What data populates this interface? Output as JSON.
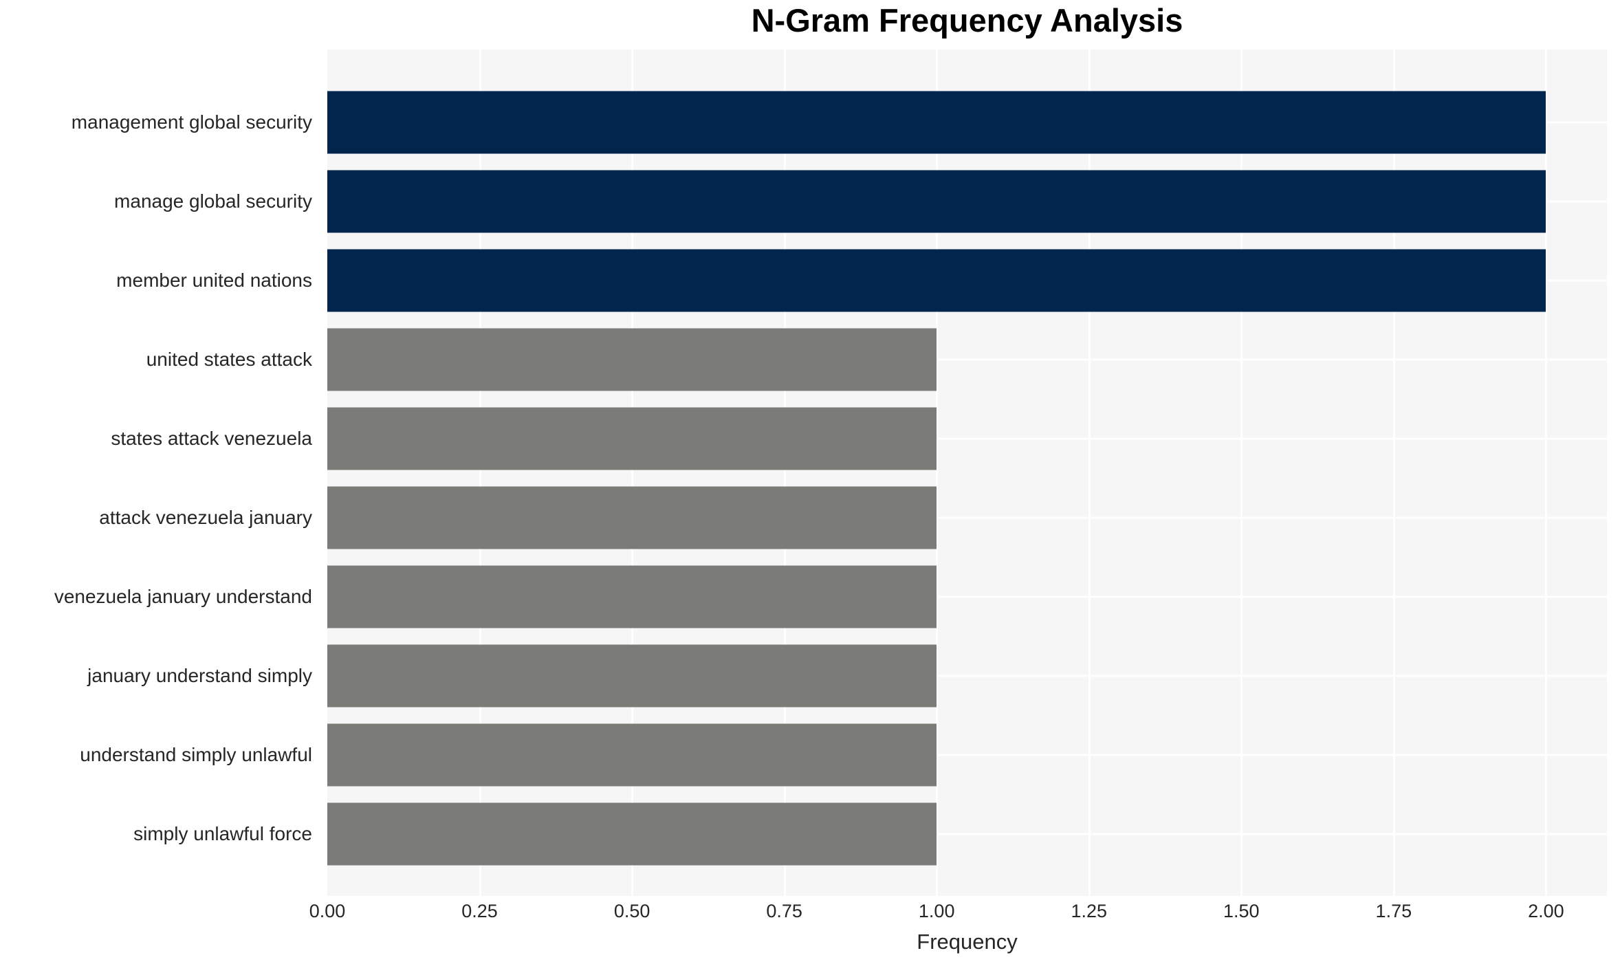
{
  "title": "N-Gram Frequency Analysis",
  "chart_data": {
    "type": "bar",
    "orientation": "horizontal",
    "title": "N-Gram Frequency Analysis",
    "xlabel": "Frequency",
    "ylabel": "",
    "categories": [
      "management global security",
      "manage global security",
      "member united nations",
      "united states attack",
      "states attack venezuela",
      "attack venezuela january",
      "venezuela january understand",
      "january understand simply",
      "understand simply unlawful",
      "simply unlawful force"
    ],
    "values": [
      2,
      2,
      2,
      1,
      1,
      1,
      1,
      1,
      1,
      1
    ],
    "bar_colors": [
      "#02254e",
      "#02254e",
      "#02254e",
      "#7b7b78",
      "#7b7b78",
      "#7b7b78",
      "#7b7b78",
      "#7b7b78",
      "#7b7b78",
      "#7b7b78"
    ],
    "xlim": [
      0,
      2.1
    ],
    "xticks": [
      0.0,
      0.25,
      0.5,
      0.75,
      1.0,
      1.25,
      1.5,
      1.75,
      2.0
    ],
    "xtick_labels": [
      "0.00",
      "0.25",
      "0.50",
      "0.75",
      "1.00",
      "1.25",
      "1.50",
      "1.75",
      "2.00"
    ],
    "grid": true,
    "legend": false,
    "plot_background": "#f6f6f6",
    "grid_color": "#ffffff",
    "title_color": "#000000",
    "label_color": "#262626"
  }
}
